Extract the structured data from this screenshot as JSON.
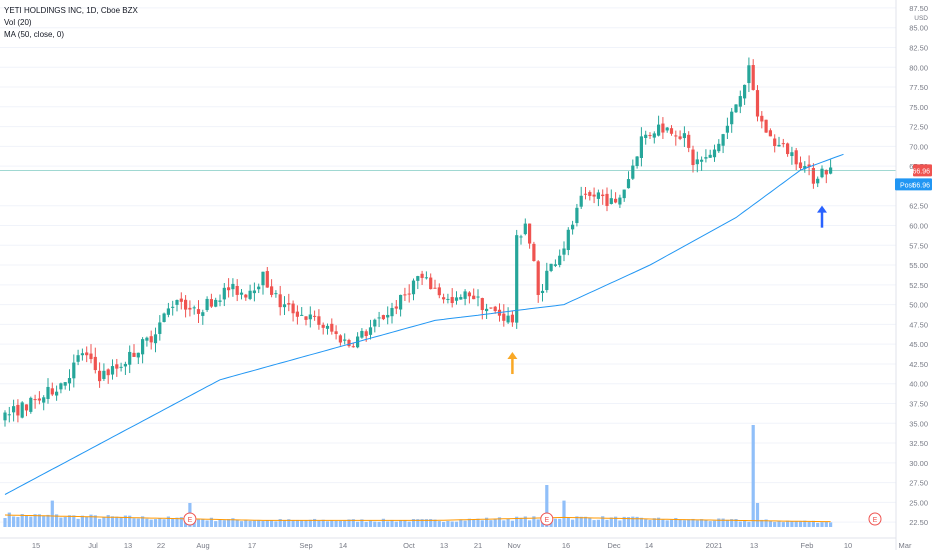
{
  "legend": {
    "title": "YETI HOLDINGS INC, 1D, Cboe BZX",
    "vol": "Vol (20)",
    "ma": "MA (50, close, 0)"
  },
  "price_axis": {
    "currency": "USD",
    "ticks": [
      "87.50",
      "85.00",
      "82.50",
      "80.00",
      "77.50",
      "75.00",
      "72.50",
      "70.00",
      "67.50",
      "62.50",
      "60.00",
      "57.50",
      "55.00",
      "52.50",
      "50.00",
      "47.50",
      "45.00",
      "42.50",
      "40.00",
      "37.50",
      "35.00",
      "32.50",
      "30.00",
      "27.50",
      "25.00",
      "22.50"
    ],
    "last_price": "66.96",
    "post_label": "Post",
    "post_price": "66.96"
  },
  "time_axis": {
    "labels": [
      "15",
      "Jul",
      "13",
      "22",
      "Aug",
      "17",
      "Sep",
      "14",
      "Oct",
      "13",
      "21",
      "Nov",
      "16",
      "Dec",
      "14",
      "2021",
      "13",
      "Feb",
      "10",
      "Mar"
    ]
  },
  "earnings_marker": "E",
  "colors": {
    "up": "#26a69a",
    "down": "#ef5350",
    "ma_line": "#2196f3",
    "volume": "#90bff9",
    "volume_ma": "#ff9800",
    "arrow_orange": "#f9a825",
    "arrow_blue": "#2962ff",
    "price_line": "#26a69a",
    "last_price_bg": "#ef5350",
    "post_bg": "#2196f3"
  },
  "chart_data": {
    "type": "candlestick",
    "title": "YETI HOLDINGS INC, 1D, Cboe BZX",
    "ylim": [
      20.5,
      88.5
    ],
    "x_range": [
      "2020-06-08",
      "2021-03-01"
    ],
    "ma_period": 50,
    "ma_start": 26.0,
    "ma_anchors": [
      [
        0,
        26.0
      ],
      [
        50,
        40.5
      ],
      [
        100,
        48.0
      ],
      [
        130,
        50.0
      ],
      [
        150,
        55.0
      ],
      [
        170,
        61.0
      ],
      [
        185,
        67.0
      ],
      [
        195,
        69.0
      ]
    ],
    "volume_anchors": [
      [
        0,
        1.0
      ],
      [
        20,
        0.85
      ],
      [
        60,
        0.55
      ],
      [
        100,
        0.55
      ],
      [
        130,
        0.8
      ],
      [
        160,
        0.6
      ],
      [
        190,
        0.45
      ],
      [
        197,
        0.45
      ]
    ],
    "volume_spikes": [
      [
        11,
        2.2
      ],
      [
        43,
        2.0
      ],
      [
        126,
        3.5
      ],
      [
        130,
        2.2
      ],
      [
        174,
        8.5
      ],
      [
        175,
        2.0
      ]
    ],
    "earnings_days": [
      43,
      126,
      200
    ],
    "close_anchors": [
      [
        0,
        36.0
      ],
      [
        8,
        38.0
      ],
      [
        14,
        40.5
      ],
      [
        18,
        44.0
      ],
      [
        22,
        41.0
      ],
      [
        26,
        42.0
      ],
      [
        34,
        46.0
      ],
      [
        40,
        51.0
      ],
      [
        44,
        49.0
      ],
      [
        48,
        50.5
      ],
      [
        52,
        52.0
      ],
      [
        56,
        51.5
      ],
      [
        60,
        53.5
      ],
      [
        64,
        50.0
      ],
      [
        68,
        49.0
      ],
      [
        72,
        48.0
      ],
      [
        76,
        46.5
      ],
      [
        80,
        45.0
      ],
      [
        84,
        46.5
      ],
      [
        88,
        48.5
      ],
      [
        92,
        50.5
      ],
      [
        96,
        53.5
      ],
      [
        100,
        52.0
      ],
      [
        104,
        50.0
      ],
      [
        108,
        51.5
      ],
      [
        112,
        49.5
      ],
      [
        116,
        48.5
      ],
      [
        118,
        48.0
      ],
      [
        119,
        58.0
      ],
      [
        121,
        60.5
      ],
      [
        123,
        55.0
      ],
      [
        124,
        51.0
      ],
      [
        126,
        54.0
      ],
      [
        130,
        57.5
      ],
      [
        134,
        63.0
      ],
      [
        138,
        64.0
      ],
      [
        142,
        62.5
      ],
      [
        145,
        66.0
      ],
      [
        148,
        71.0
      ],
      [
        152,
        72.5
      ],
      [
        156,
        72.0
      ],
      [
        158,
        71.0
      ],
      [
        160,
        68.0
      ],
      [
        164,
        68.5
      ],
      [
        168,
        72.5
      ],
      [
        171,
        77.0
      ],
      [
        173,
        79.5
      ],
      [
        175,
        74.0
      ],
      [
        178,
        71.0
      ],
      [
        180,
        70.0
      ],
      [
        182,
        69.5
      ],
      [
        185,
        68.0
      ],
      [
        188,
        66.0
      ],
      [
        190,
        67.0
      ],
      [
        192,
        66.96
      ]
    ],
    "annotations": [
      {
        "type": "arrow-up",
        "day": 118,
        "price": 43.5,
        "color": "orange"
      },
      {
        "type": "arrow-up",
        "day": 190,
        "price": 62.0,
        "color": "blue"
      }
    ]
  }
}
